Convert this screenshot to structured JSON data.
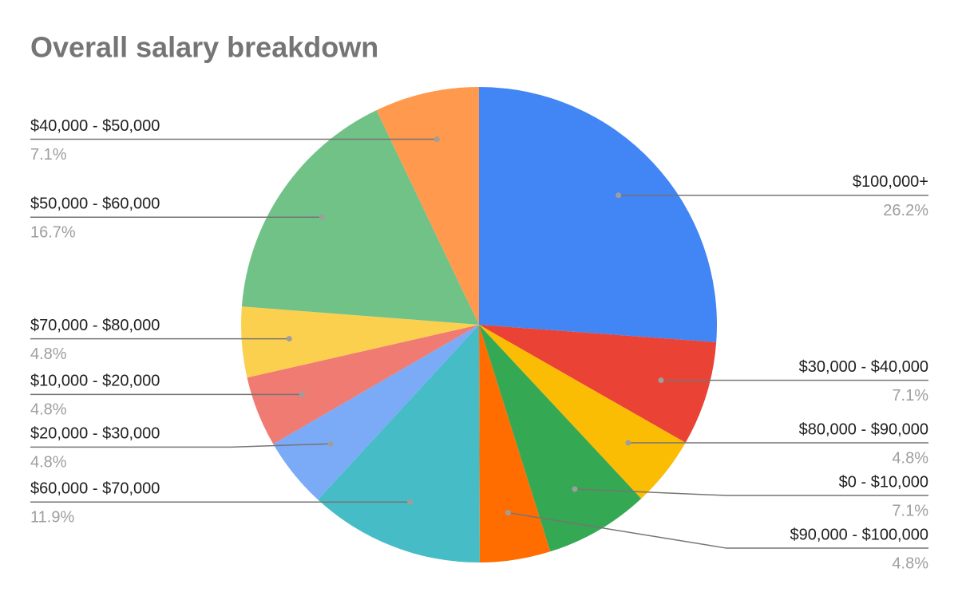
{
  "chart_data": {
    "type": "pie",
    "title": "Overall salary breakdown",
    "categories": [
      "$100,000+",
      "$30,000 - $40,000",
      "$80,000 - $90,000",
      "$0 - $10,000",
      "$90,000 - $100,000",
      "$60,000 - $70,000",
      "$20,000 - $30,000",
      "$10,000 - $20,000",
      "$70,000 - $80,000",
      "$50,000 - $60,000",
      "$40,000 - $50,000"
    ],
    "values": [
      26.2,
      7.1,
      4.8,
      7.1,
      4.8,
      11.9,
      4.8,
      4.8,
      4.8,
      16.7,
      7.1
    ],
    "value_labels": [
      "26.2%",
      "7.1%",
      "4.8%",
      "7.1%",
      "4.8%",
      "11.9%",
      "4.8%",
      "4.8%",
      "4.8%",
      "16.7%",
      "7.1%"
    ],
    "colors": [
      "#4285f4",
      "#ea4335",
      "#fbbc04",
      "#34a853",
      "#ff6d01",
      "#46bdc6",
      "#7baaf7",
      "#f07b72",
      "#fcd04f",
      "#71c287",
      "#ff994d"
    ]
  }
}
